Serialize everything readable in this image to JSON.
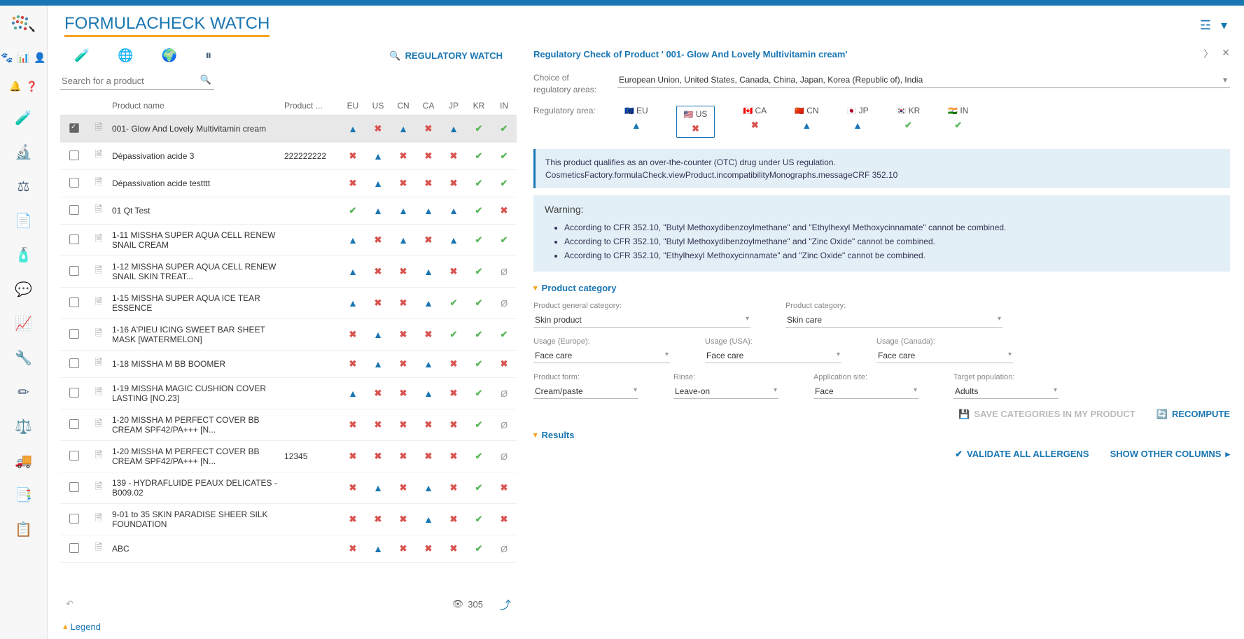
{
  "page_title": "FORMULACHECK WATCH",
  "regulatory_watch_link": "REGULATORY WATCH",
  "search_placeholder": "Search for a product",
  "table": {
    "columns": {
      "name": "Product name",
      "code": "Product ...",
      "eu": "EU",
      "us": "US",
      "cn": "CN",
      "ca": "CA",
      "jp": "JP",
      "kr": "KR",
      "in": "IN"
    },
    "rows": [
      {
        "selected": true,
        "name": "001- Glow And Lovely Multivitamin cream",
        "code": "",
        "eu": "warn",
        "us": "err",
        "cn": "warn",
        "ca": "err",
        "jp": "warn",
        "kr": "ok",
        "in": "ok"
      },
      {
        "selected": false,
        "name": "Dépassivation acide 3",
        "code": "222222222",
        "eu": "err",
        "us": "warn",
        "cn": "err",
        "ca": "err",
        "jp": "err",
        "kr": "ok",
        "in": "ok"
      },
      {
        "selected": false,
        "name": "Dépassivation acide testttt",
        "code": "",
        "eu": "err",
        "us": "warn",
        "cn": "err",
        "ca": "err",
        "jp": "err",
        "kr": "ok",
        "in": "ok"
      },
      {
        "selected": false,
        "name": "01 Qt Test",
        "code": "",
        "eu": "ok",
        "us": "warn",
        "cn": "warn",
        "ca": "warn",
        "jp": "warn",
        "kr": "ok",
        "in": "err"
      },
      {
        "selected": false,
        "name": "1-11 MISSHA SUPER AQUA CELL RENEW SNAIL CREAM",
        "code": "",
        "eu": "warn",
        "us": "err",
        "cn": "warn",
        "ca": "err",
        "jp": "warn",
        "kr": "ok",
        "in": "ok"
      },
      {
        "selected": false,
        "name": "1-12 MISSHA SUPER AQUA CELL RENEW SNAIL SKIN TREAT...",
        "code": "",
        "eu": "warn",
        "us": "err",
        "cn": "err",
        "ca": "warn",
        "jp": "err",
        "kr": "ok",
        "in": "na"
      },
      {
        "selected": false,
        "name": "1-15 MISSHA SUPER AQUA ICE TEAR ESSENCE",
        "code": "",
        "eu": "warn",
        "us": "err",
        "cn": "err",
        "ca": "warn",
        "jp": "ok",
        "kr": "ok",
        "in": "na"
      },
      {
        "selected": false,
        "name": "1-16 A'PIEU ICING SWEET BAR SHEET MASK [WATERMELON]",
        "code": "",
        "eu": "err",
        "us": "warn",
        "cn": "err",
        "ca": "err",
        "jp": "ok",
        "kr": "ok",
        "in": "ok"
      },
      {
        "selected": false,
        "name": "1-18 MISSHA M BB BOOMER",
        "code": "",
        "eu": "err",
        "us": "warn",
        "cn": "err",
        "ca": "warn",
        "jp": "err",
        "kr": "ok",
        "in": "err"
      },
      {
        "selected": false,
        "name": "1-19 MISSHA MAGIC CUSHION COVER LASTING [NO.23]",
        "code": "",
        "eu": "warn",
        "us": "err",
        "cn": "err",
        "ca": "warn",
        "jp": "err",
        "kr": "ok",
        "in": "na"
      },
      {
        "selected": false,
        "name": "1-20 MISSHA M PERFECT COVER BB CREAM SPF42/PA+++ [N...",
        "code": "",
        "eu": "err",
        "us": "err",
        "cn": "err",
        "ca": "err",
        "jp": "err",
        "kr": "ok",
        "in": "na"
      },
      {
        "selected": false,
        "name": "1-20 MISSHA M PERFECT COVER BB CREAM SPF42/PA+++ [N...",
        "code": "12345",
        "eu": "err",
        "us": "err",
        "cn": "err",
        "ca": "err",
        "jp": "err",
        "kr": "ok",
        "in": "na"
      },
      {
        "selected": false,
        "name": "139 - HYDRAFLUIDE PEAUX DELICATES - B009.02",
        "code": "",
        "eu": "err",
        "us": "warn",
        "cn": "err",
        "ca": "warn",
        "jp": "err",
        "kr": "ok",
        "in": "err"
      },
      {
        "selected": false,
        "name": "9-01 to 35 SKIN PARADISE SHEER SILK FOUNDATION",
        "code": "",
        "eu": "err",
        "us": "err",
        "cn": "err",
        "ca": "warn",
        "jp": "err",
        "kr": "ok",
        "in": "err"
      },
      {
        "selected": false,
        "name": "ABC",
        "code": "",
        "eu": "err",
        "us": "warn",
        "cn": "err",
        "ca": "err",
        "jp": "err",
        "kr": "ok",
        "in": "na"
      }
    ],
    "count": "305",
    "legend": "Legend"
  },
  "detail": {
    "title": "Regulatory Check of Product ' 001- Glow And Lovely Multivitamin cream'",
    "choice_label": "Choice of regulatory areas:",
    "choice_value": "European Union, United States, Canada, China, Japan, Korea (Republic of), India",
    "reg_area_label": "Regulatory area:",
    "areas": [
      {
        "code": "EU",
        "flag": "🇪🇺",
        "selected": false,
        "status": "warn"
      },
      {
        "code": "US",
        "flag": "🇺🇸",
        "selected": true,
        "status": "err"
      },
      {
        "code": "CA",
        "flag": "🇨🇦",
        "selected": false,
        "status": "err"
      },
      {
        "code": "CN",
        "flag": "🇨🇳",
        "selected": false,
        "status": "warn"
      },
      {
        "code": "JP",
        "flag": "🇯🇵",
        "selected": false,
        "status": "warn"
      },
      {
        "code": "KR",
        "flag": "🇰🇷",
        "selected": false,
        "status": "ok"
      },
      {
        "code": "IN",
        "flag": "🇮🇳",
        "selected": false,
        "status": "ok"
      }
    ],
    "info1": "This product qualifies as an over-the-counter (OTC) drug under US regulation.",
    "info2": "CosmeticsFactory.formulaCheck.viewProduct.incompatibilityMonographs.messageCRF 352.10",
    "warning_title": "Warning:",
    "warnings": [
      "According to CFR 352.10, \"Butyl Methoxydibenzoylmethane\" and \"Ethylhexyl Methoxycinnamate\" cannot be combined.",
      "According to CFR 352.10, \"Butyl Methoxydibenzoylmethane\" and \"Zinc Oxide\" cannot be combined.",
      "According to CFR 352.10, \"Ethylhexyl Methoxycinnamate\" and \"Zinc Oxide\" cannot be combined."
    ],
    "section_category": "Product category",
    "fields": {
      "general_category": {
        "label": "Product general category:",
        "value": "Skin product"
      },
      "category": {
        "label": "Product category:",
        "value": "Skin care"
      },
      "usage_eu": {
        "label": "Usage (Europe):",
        "value": "Face care"
      },
      "usage_us": {
        "label": "Usage (USA):",
        "value": "Face care"
      },
      "usage_ca": {
        "label": "Usage (Canada):",
        "value": "Face care"
      },
      "form": {
        "label": "Product form:",
        "value": "Cream/paste"
      },
      "rinse": {
        "label": "Rinse:",
        "value": "Leave-on"
      },
      "site": {
        "label": "Application site:",
        "value": "Face"
      },
      "target": {
        "label": "Target population:",
        "value": "Adults"
      }
    },
    "save_label": "SAVE CATEGORIES IN MY PRODUCT",
    "recompute_label": "RECOMPUTE",
    "section_results": "Results",
    "validate_label": "VALIDATE ALL ALLERGENS",
    "show_other_label": "SHOW OTHER COLUMNS"
  }
}
